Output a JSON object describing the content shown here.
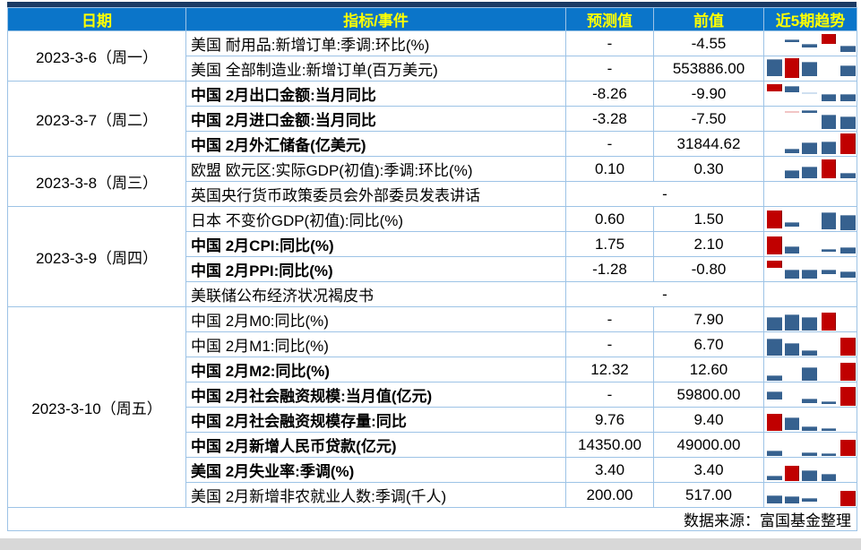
{
  "colors": {
    "top_bar": "#1A3A64",
    "header_bg": "#0B75C9",
    "header_text": "#FFFF00",
    "grid": "#9DC3E6",
    "bottom_strip": "#D8D8D8",
    "bar_blue": "#36618F",
    "bar_red": "#C00000",
    "bar_faintblue": "#CFE0F0",
    "bar_faintred": "#F2C5C5"
  },
  "table": {
    "headers": [
      "日期",
      "指标/事件",
      "预测值",
      "前值",
      "近5期趋势"
    ],
    "source_note": "数据来源：富国基金整理",
    "groups": [
      {
        "date": "2023-3-6（周一）",
        "rows": [
          {
            "indicator": "美国 耐用品:新增订单:季调:环比(%)",
            "bold": false,
            "forecast": "-",
            "previous": "-4.55",
            "trend": [
              {
                "s": 1,
                "c": "blue",
                "t": 35,
                "h": 8
              },
              {
                "s": 2,
                "c": "blue",
                "t": 52,
                "h": 14
              },
              {
                "s": 3,
                "c": "red",
                "t": 12,
                "h": 40
              },
              {
                "s": 4,
                "c": "blue",
                "t": 58,
                "h": 28
              }
            ]
          },
          {
            "indicator": "美国 全部制造业:新增订单(百万美元)",
            "bold": false,
            "forecast": "-",
            "previous": "553886.00",
            "trend": [
              {
                "s": 0,
                "c": "blue",
                "t": 12,
                "h": 70
              },
              {
                "s": 1,
                "c": "red",
                "t": 7,
                "h": 82
              },
              {
                "s": 2,
                "c": "blue",
                "t": 23,
                "h": 60
              },
              {
                "s": 4,
                "c": "blue",
                "t": 37,
                "h": 46
              }
            ]
          }
        ]
      },
      {
        "date": "2023-3-7（周二）",
        "rows": [
          {
            "indicator": "中国 2月出口金额:当月同比",
            "bold": true,
            "forecast": "-8.26",
            "previous": "-9.90",
            "trend": [
              {
                "s": 0,
                "c": "red",
                "t": 10,
                "h": 32
              },
              {
                "s": 1,
                "c": "blue",
                "t": 18,
                "h": 25
              },
              {
                "s": 2,
                "c": "faintblue",
                "t": 46,
                "h": 5
              },
              {
                "s": 3,
                "c": "blue",
                "t": 53,
                "h": 28
              },
              {
                "s": 4,
                "c": "blue",
                "t": 53,
                "h": 28
              }
            ]
          },
          {
            "indicator": "中国 2月进口金额:当月同比",
            "bold": true,
            "forecast": "-3.28",
            "previous": "-7.50",
            "trend": [
              {
                "s": 1,
                "c": "faintred",
                "t": 20,
                "h": 5
              },
              {
                "s": 2,
                "c": "blue",
                "t": 16,
                "h": 9
              },
              {
                "s": 3,
                "c": "blue",
                "t": 33,
                "h": 58
              },
              {
                "s": 4,
                "c": "blue",
                "t": 40,
                "h": 51
              }
            ]
          },
          {
            "indicator": "中国 2月外汇储备(亿美元)",
            "bold": true,
            "forecast": "-",
            "previous": "31844.62",
            "trend": [
              {
                "s": 1,
                "c": "blue",
                "t": 72,
                "h": 16
              },
              {
                "s": 2,
                "c": "blue",
                "t": 46,
                "h": 46
              },
              {
                "s": 3,
                "c": "blue",
                "t": 40,
                "h": 52
              },
              {
                "s": 4,
                "c": "red",
                "t": 8,
                "h": 86
              }
            ]
          }
        ]
      },
      {
        "date": "2023-3-8（周三）",
        "rows": [
          {
            "indicator": "欧盟 欧元区:实际GDP(初值):季调:环比(%)",
            "bold": false,
            "forecast": "0.10",
            "previous": "0.30",
            "trend": [
              {
                "s": 1,
                "c": "blue",
                "t": 55,
                "h": 33
              },
              {
                "s": 2,
                "c": "blue",
                "t": 40,
                "h": 48
              },
              {
                "s": 3,
                "c": "red",
                "t": 12,
                "h": 76
              },
              {
                "s": 4,
                "c": "blue",
                "t": 65,
                "h": 23
              }
            ]
          },
          {
            "indicator": "英国央行货币政策委员会外部委员发表讲话",
            "bold": false,
            "merged": true,
            "value": "-",
            "trend": []
          }
        ]
      },
      {
        "date": "2023-3-9（周四）",
        "rows": [
          {
            "indicator": "日本 不变价GDP(初值):同比(%)",
            "bold": false,
            "forecast": "0.60",
            "previous": "1.50",
            "trend": [
              {
                "s": 0,
                "c": "red",
                "t": 15,
                "h": 75
              },
              {
                "s": 1,
                "c": "blue",
                "t": 63,
                "h": 19
              },
              {
                "s": 3,
                "c": "blue",
                "t": 23,
                "h": 68
              },
              {
                "s": 4,
                "c": "blue",
                "t": 33,
                "h": 63
              }
            ]
          },
          {
            "indicator": "中国 2月CPI:同比(%)",
            "bold": true,
            "forecast": "1.75",
            "previous": "2.10",
            "trend": [
              {
                "s": 0,
                "c": "red",
                "t": 19,
                "h": 74
              },
              {
                "s": 1,
                "c": "blue",
                "t": 58,
                "h": 30
              },
              {
                "s": 3,
                "c": "blue",
                "t": 72,
                "h": 11
              },
              {
                "s": 4,
                "c": "blue",
                "t": 63,
                "h": 25
              }
            ]
          },
          {
            "indicator": "中国 2月PPI:同比(%)",
            "bold": true,
            "forecast": "-1.28",
            "previous": "-0.80",
            "trend": [
              {
                "s": 0,
                "c": "red",
                "t": 14,
                "h": 32
              },
              {
                "s": 1,
                "c": "blue",
                "t": 53,
                "h": 35
              },
              {
                "s": 2,
                "c": "blue",
                "t": 53,
                "h": 35
              },
              {
                "s": 3,
                "c": "blue",
                "t": 53,
                "h": 18
              },
              {
                "s": 4,
                "c": "blue",
                "t": 58,
                "h": 28
              }
            ]
          },
          {
            "indicator": "美联储公布经济状况褐皮书",
            "bold": false,
            "merged": true,
            "value": "-",
            "trend": []
          }
        ]
      },
      {
        "date": "2023-3-10（周五）",
        "rows": [
          {
            "indicator": "中国 2月M0:同比(%)",
            "bold": false,
            "forecast": "-",
            "previous": "7.90",
            "trend": [
              {
                "s": 0,
                "c": "blue",
                "t": 39,
                "h": 58
              },
              {
                "s": 1,
                "c": "blue",
                "t": 28,
                "h": 69
              },
              {
                "s": 2,
                "c": "blue",
                "t": 39,
                "h": 58
              },
              {
                "s": 3,
                "c": "red",
                "t": 21,
                "h": 76
              }
            ]
          },
          {
            "indicator": "中国 2月M1:同比(%)",
            "bold": false,
            "forecast": "-",
            "previous": "6.70",
            "trend": [
              {
                "s": 0,
                "c": "blue",
                "t": 26,
                "h": 70
              },
              {
                "s": 1,
                "c": "blue",
                "t": 44,
                "h": 52
              },
              {
                "s": 2,
                "c": "blue",
                "t": 75,
                "h": 21
              },
              {
                "s": 4,
                "c": "red",
                "t": 23,
                "h": 73
              }
            ]
          },
          {
            "indicator": "中国 2月M2:同比(%)",
            "bold": true,
            "forecast": "12.32",
            "previous": "12.60",
            "trend": [
              {
                "s": 0,
                "c": "blue",
                "t": 74,
                "h": 24
              },
              {
                "s": 2,
                "c": "blue",
                "t": 39,
                "h": 59
              },
              {
                "s": 4,
                "c": "red",
                "t": 21,
                "h": 77
              }
            ]
          },
          {
            "indicator": "中国 2月社会融资规模:当月值(亿元)",
            "bold": true,
            "forecast": "-",
            "previous": "59800.00",
            "trend": [
              {
                "s": 0,
                "c": "blue",
                "t": 37,
                "h": 32
              },
              {
                "s": 2,
                "c": "blue",
                "t": 68,
                "h": 18
              },
              {
                "s": 3,
                "c": "blue",
                "t": 79,
                "h": 11
              },
              {
                "s": 4,
                "c": "red",
                "t": 19,
                "h": 77
              }
            ]
          },
          {
            "indicator": "中国 2月社会融资规模存量:同比",
            "bold": true,
            "forecast": "9.76",
            "previous": "9.40",
            "trend": [
              {
                "s": 0,
                "c": "red",
                "t": 25,
                "h": 70
              },
              {
                "s": 1,
                "c": "blue",
                "t": 42,
                "h": 52
              },
              {
                "s": 2,
                "c": "blue",
                "t": 77,
                "h": 18
              },
              {
                "s": 3,
                "c": "blue",
                "t": 84,
                "h": 13
              }
            ]
          },
          {
            "indicator": "中国 2月新增人民币贷款(亿元)",
            "bold": true,
            "forecast": "14350.00",
            "previous": "49000.00",
            "trend": [
              {
                "s": 0,
                "c": "blue",
                "t": 75,
                "h": 22
              },
              {
                "s": 2,
                "c": "blue",
                "t": 80,
                "h": 15
              },
              {
                "s": 3,
                "c": "blue",
                "t": 86,
                "h": 10
              },
              {
                "s": 4,
                "c": "red",
                "t": 28,
                "h": 68
              }
            ]
          },
          {
            "indicator": "美国 2月失业率:季调(%)",
            "bold": true,
            "forecast": "3.40",
            "previous": "3.40",
            "trend": [
              {
                "s": 0,
                "c": "blue",
                "t": 75,
                "h": 16
              },
              {
                "s": 1,
                "c": "red",
                "t": 33,
                "h": 64
              },
              {
                "s": 2,
                "c": "blue",
                "t": 50,
                "h": 48
              },
              {
                "s": 3,
                "c": "blue",
                "t": 68,
                "h": 30
              }
            ]
          },
          {
            "indicator": "美国 2月新增非农就业人数:季调(千人)",
            "bold": false,
            "forecast": "200.00",
            "previous": "517.00",
            "trend": [
              {
                "s": 0,
                "c": "blue",
                "t": 52,
                "h": 34
              },
              {
                "s": 1,
                "c": "blue",
                "t": 56,
                "h": 30
              },
              {
                "s": 2,
                "c": "blue",
                "t": 63,
                "h": 16
              },
              {
                "s": 4,
                "c": "red",
                "t": 35,
                "h": 62
              }
            ]
          }
        ]
      }
    ]
  }
}
